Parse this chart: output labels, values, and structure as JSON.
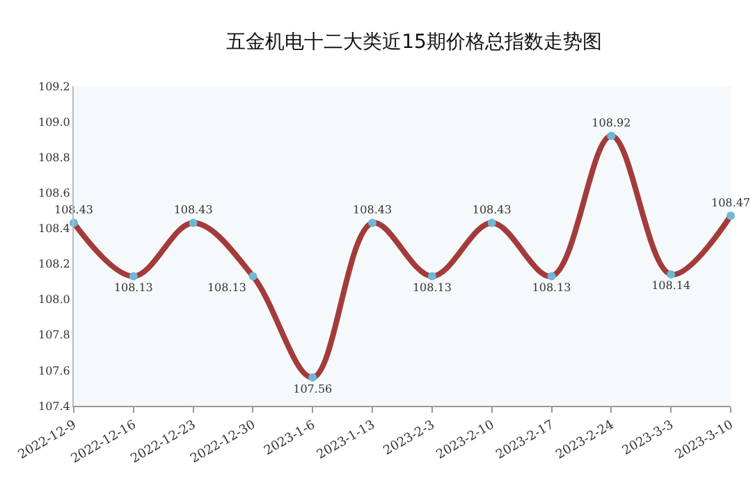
{
  "chart_data": {
    "type": "line",
    "title": "五金机电十二大类近15期价格总指数走势图",
    "categories": [
      "2022-12-9",
      "2022-12-16",
      "2022-12-23",
      "2022-12-30",
      "2023-1-6",
      "2023-1-13",
      "2023-2-3",
      "2023-2-10",
      "2023-2-17",
      "2023-2-24",
      "2023-3-3",
      "2023-3-10"
    ],
    "series": [
      {
        "color": "#a33b3b",
        "values": [
          108.43,
          108.13,
          108.43,
          108.13,
          107.56,
          108.43,
          108.13,
          108.43,
          108.13,
          108.92,
          108.14,
          108.47
        ]
      }
    ],
    "ylim": [
      107.4,
      109.2
    ],
    "yticks": [
      107.4,
      107.6,
      107.8,
      {
        "value": 108,
        "label": "108.0"
      },
      108.2,
      108.4,
      108.6,
      108.8,
      {
        "value": 109,
        "label": "109.0"
      },
      109.2
    ],
    "grid": false,
    "legend": false,
    "marker": "circle",
    "line_style": "solid",
    "data_labels": true
  }
}
